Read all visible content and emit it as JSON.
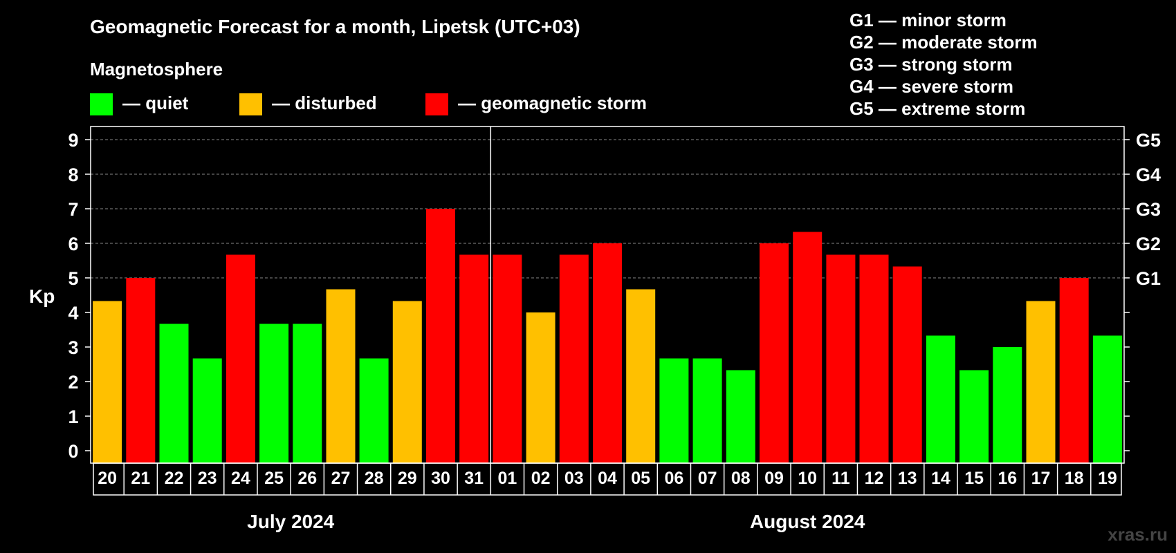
{
  "chart_data": {
    "type": "bar",
    "title": "Geomagnetic Forecast for a month, Lipetsk (UTC+03)",
    "legend_heading": "Magnetosphere",
    "legend": [
      {
        "label": "— quiet",
        "color": "#00ff00"
      },
      {
        "label": "— disturbed",
        "color": "#ffc000"
      },
      {
        "label": "— geomagnetic storm",
        "color": "#ff0000"
      }
    ],
    "storm_levels": [
      "G1 — minor storm",
      "G2 — moderate storm",
      "G3 — strong storm",
      "G4 — severe storm",
      "G5 — extreme storm"
    ],
    "ylabel": "Kp",
    "ylim": [
      0,
      9
    ],
    "yticks": [
      "0",
      "1",
      "2",
      "3",
      "4",
      "5",
      "6",
      "7",
      "8",
      "9"
    ],
    "right_axis_labels": [
      {
        "kp": 5,
        "label": "G1"
      },
      {
        "kp": 6,
        "label": "G2"
      },
      {
        "kp": 7,
        "label": "G3"
      },
      {
        "kp": 8,
        "label": "G4"
      },
      {
        "kp": 9,
        "label": "G5"
      }
    ],
    "categories": [
      "20",
      "21",
      "22",
      "23",
      "24",
      "25",
      "26",
      "27",
      "28",
      "29",
      "30",
      "31",
      "01",
      "02",
      "03",
      "04",
      "05",
      "06",
      "07",
      "08",
      "09",
      "10",
      "11",
      "12",
      "13",
      "14",
      "15",
      "16",
      "17",
      "18",
      "19"
    ],
    "values": [
      4.33,
      5.0,
      3.67,
      2.67,
      5.67,
      3.67,
      3.67,
      4.67,
      2.67,
      4.33,
      7.0,
      5.67,
      5.67,
      4.0,
      5.67,
      6.0,
      4.67,
      2.67,
      2.67,
      2.33,
      6.0,
      6.33,
      5.67,
      5.67,
      5.33,
      3.33,
      2.33,
      3.0,
      4.33,
      5.0,
      3.33
    ],
    "bar_colors": [
      "#ffc000",
      "#ff0000",
      "#00ff00",
      "#00ff00",
      "#ff0000",
      "#00ff00",
      "#00ff00",
      "#ffc000",
      "#00ff00",
      "#ffc000",
      "#ff0000",
      "#ff0000",
      "#ff0000",
      "#ffc000",
      "#ff0000",
      "#ff0000",
      "#ffc000",
      "#00ff00",
      "#00ff00",
      "#00ff00",
      "#ff0000",
      "#ff0000",
      "#ff0000",
      "#ff0000",
      "#ff0000",
      "#00ff00",
      "#00ff00",
      "#00ff00",
      "#ffc000",
      "#ff0000",
      "#00ff00"
    ],
    "months": [
      {
        "label": "July 2024",
        "count": 12
      },
      {
        "label": "August 2024",
        "count": 19
      }
    ],
    "grid": true,
    "watermark": "xras.ru"
  }
}
